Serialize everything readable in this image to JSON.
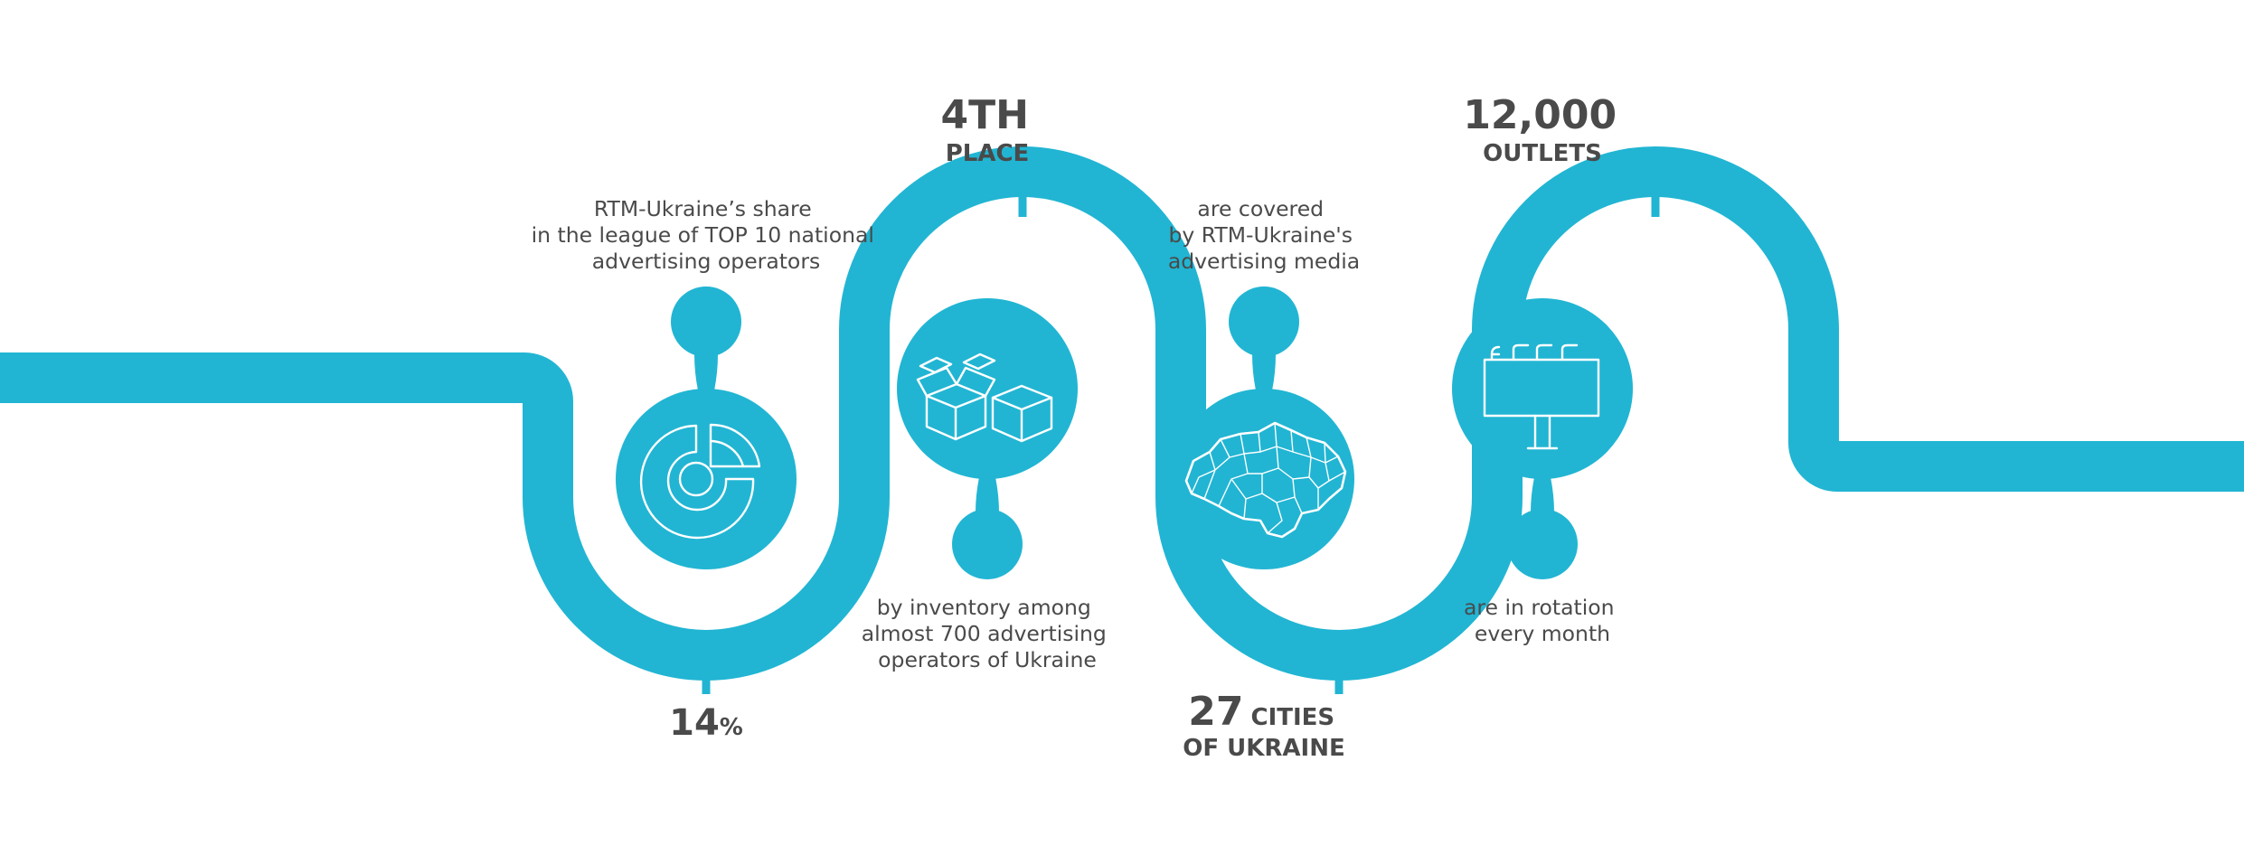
{
  "colors": {
    "accent": "#21b5d3",
    "text": "#4a4a4a",
    "icon": "#ffffff"
  },
  "milestones": [
    {
      "icon": "pie-chart-icon",
      "stat_value": "14",
      "stat_suffix": "%",
      "description": [
        "RTM-Ukraine’s share",
        "in the league of TOP 10 national",
        "advertising operators"
      ]
    },
    {
      "icon": "boxes-icon",
      "stat_value": "4TH",
      "stat_suffix": "PLACE",
      "description": [
        "by inventory among",
        "almost 700 advertising",
        "operators of Ukraine"
      ]
    },
    {
      "icon": "ukraine-map-icon",
      "stat_value": "27",
      "stat_suffix": "CITIES",
      "stat_line2": "OF UKRAINE",
      "description": [
        "are covered",
        "by RTM-Ukraine's",
        "advertising media"
      ]
    },
    {
      "icon": "billboard-icon",
      "stat_value": "12,000",
      "stat_suffix": "OUTLETS",
      "description": [
        "are in rotation",
        "every month"
      ]
    }
  ]
}
